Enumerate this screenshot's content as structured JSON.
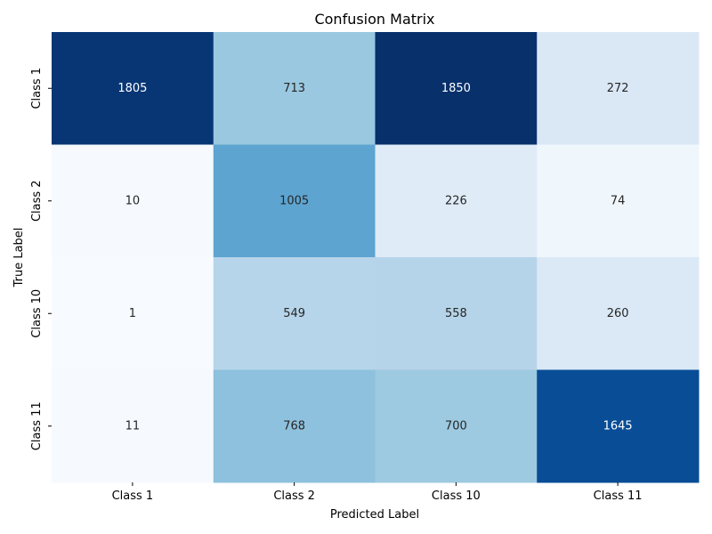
{
  "chart_data": {
    "type": "heatmap",
    "title": "Confusion Matrix",
    "xlabel": "Predicted Label",
    "ylabel": "True Label",
    "x_categories": [
      "Class 1",
      "Class 2",
      "Class 10",
      "Class 11"
    ],
    "y_categories": [
      "Class 1",
      "Class 2",
      "Class 10",
      "Class 11"
    ],
    "values": [
      [
        1805,
        713,
        1850,
        272
      ],
      [
        10,
        1005,
        226,
        74
      ],
      [
        1,
        549,
        558,
        260
      ],
      [
        11,
        768,
        700,
        1645
      ]
    ],
    "colormap": "Blues",
    "value_range": [
      1,
      1850
    ],
    "colorbar": false,
    "grid": false
  }
}
